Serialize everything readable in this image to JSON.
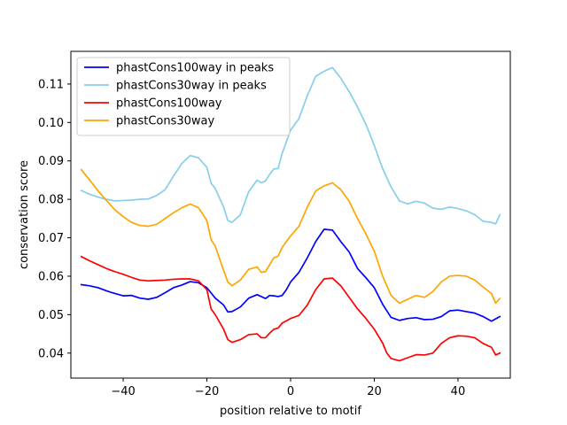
{
  "chart_data": {
    "type": "line",
    "title": "",
    "xlabel": "position relative to motif",
    "ylabel": "conservation score",
    "xlim": [
      -52.5,
      52.5
    ],
    "ylim": [
      0.0335,
      0.1185
    ],
    "xticks": [
      -40,
      -20,
      0,
      20,
      40
    ],
    "yticks": [
      0.04,
      0.05,
      0.06,
      0.07,
      0.08,
      0.09,
      0.1,
      0.11
    ],
    "ytick_labels": [
      "0.04",
      "0.05",
      "0.06",
      "0.07",
      "0.08",
      "0.09",
      "0.10",
      "0.11"
    ],
    "grid": false,
    "legend_position": "top-left",
    "series": [
      {
        "name": "phastCons100way in peaks",
        "color": "#0000ff",
        "points": [
          [
            -50,
            0.0578
          ],
          [
            -48,
            0.0575
          ],
          [
            -46,
            0.057
          ],
          [
            -44,
            0.0562
          ],
          [
            -42,
            0.0555
          ],
          [
            -40,
            0.0549
          ],
          [
            -38,
            0.055
          ],
          [
            -36,
            0.0543
          ],
          [
            -34,
            0.054
          ],
          [
            -32,
            0.0545
          ],
          [
            -30,
            0.0557
          ],
          [
            -28,
            0.057
          ],
          [
            -26,
            0.0577
          ],
          [
            -24,
            0.0586
          ],
          [
            -22,
            0.0583
          ],
          [
            -20,
            0.057
          ],
          [
            -18,
            0.0543
          ],
          [
            -16,
            0.0525
          ],
          [
            -15,
            0.0507
          ],
          [
            -14,
            0.0508
          ],
          [
            -12,
            0.052
          ],
          [
            -10,
            0.0543
          ],
          [
            -8,
            0.0552
          ],
          [
            -6,
            0.0542
          ],
          [
            -5,
            0.055
          ],
          [
            -4,
            0.0549
          ],
          [
            -3,
            0.0547
          ],
          [
            -2,
            0.055
          ],
          [
            -1,
            0.0565
          ],
          [
            0,
            0.0585
          ],
          [
            2,
            0.061
          ],
          [
            4,
            0.0648
          ],
          [
            6,
            0.069
          ],
          [
            8,
            0.0722
          ],
          [
            10,
            0.072
          ],
          [
            12,
            0.069
          ],
          [
            14,
            0.0663
          ],
          [
            16,
            0.062
          ],
          [
            18,
            0.0596
          ],
          [
            20,
            0.057
          ],
          [
            22,
            0.0527
          ],
          [
            24,
            0.0493
          ],
          [
            26,
            0.0485
          ],
          [
            28,
            0.049
          ],
          [
            30,
            0.0492
          ],
          [
            32,
            0.0487
          ],
          [
            34,
            0.0488
          ],
          [
            36,
            0.0495
          ],
          [
            38,
            0.051
          ],
          [
            40,
            0.0512
          ],
          [
            42,
            0.0508
          ],
          [
            44,
            0.0504
          ],
          [
            46,
            0.0495
          ],
          [
            48,
            0.0483
          ],
          [
            50,
            0.0495
          ]
        ]
      },
      {
        "name": "phastCons30way in peaks",
        "color": "#87ceeb",
        "points": [
          [
            -50,
            0.0823
          ],
          [
            -48,
            0.0813
          ],
          [
            -46,
            0.0806
          ],
          [
            -44,
            0.08
          ],
          [
            -42,
            0.0796
          ],
          [
            -40,
            0.0797
          ],
          [
            -38,
            0.0798
          ],
          [
            -36,
            0.08
          ],
          [
            -34,
            0.0801
          ],
          [
            -32,
            0.081
          ],
          [
            -30,
            0.0825
          ],
          [
            -28,
            0.086
          ],
          [
            -26,
            0.0893
          ],
          [
            -24,
            0.0914
          ],
          [
            -22,
            0.0908
          ],
          [
            -20,
            0.0883
          ],
          [
            -19,
            0.0842
          ],
          [
            -18,
            0.0828
          ],
          [
            -16,
            0.078
          ],
          [
            -15,
            0.0745
          ],
          [
            -14,
            0.074
          ],
          [
            -12,
            0.076
          ],
          [
            -10,
            0.082
          ],
          [
            -8,
            0.085
          ],
          [
            -7,
            0.0843
          ],
          [
            -6,
            0.0848
          ],
          [
            -5,
            0.0865
          ],
          [
            -4,
            0.0879
          ],
          [
            -3,
            0.088
          ],
          [
            -2,
            0.092
          ],
          [
            0,
            0.098
          ],
          [
            2,
            0.101
          ],
          [
            4,
            0.107
          ],
          [
            6,
            0.112
          ],
          [
            8,
            0.1133
          ],
          [
            10,
            0.1143
          ],
          [
            12,
            0.1115
          ],
          [
            14,
            0.108
          ],
          [
            16,
            0.104
          ],
          [
            18,
            0.0995
          ],
          [
            20,
            0.094
          ],
          [
            22,
            0.088
          ],
          [
            24,
            0.0832
          ],
          [
            26,
            0.0796
          ],
          [
            28,
            0.0788
          ],
          [
            30,
            0.0795
          ],
          [
            32,
            0.079
          ],
          [
            34,
            0.0777
          ],
          [
            36,
            0.0774
          ],
          [
            38,
            0.078
          ],
          [
            40,
            0.0776
          ],
          [
            42,
            0.077
          ],
          [
            44,
            0.076
          ],
          [
            46,
            0.0743
          ],
          [
            48,
            0.074
          ],
          [
            49,
            0.0736
          ],
          [
            50,
            0.076
          ]
        ]
      },
      {
        "name": "phastCons100way",
        "color": "#ff0000",
        "points": [
          [
            -50,
            0.0651
          ],
          [
            -48,
            0.064
          ],
          [
            -46,
            0.063
          ],
          [
            -44,
            0.062
          ],
          [
            -42,
            0.0612
          ],
          [
            -40,
            0.0605
          ],
          [
            -38,
            0.0597
          ],
          [
            -36,
            0.059
          ],
          [
            -34,
            0.0588
          ],
          [
            -32,
            0.0589
          ],
          [
            -30,
            0.059
          ],
          [
            -28,
            0.0592
          ],
          [
            -26,
            0.0593
          ],
          [
            -24,
            0.0593
          ],
          [
            -22,
            0.0588
          ],
          [
            -20,
            0.0565
          ],
          [
            -19,
            0.0515
          ],
          [
            -18,
            0.05
          ],
          [
            -16,
            0.0462
          ],
          [
            -15,
            0.0435
          ],
          [
            -14,
            0.0428
          ],
          [
            -12,
            0.0435
          ],
          [
            -10,
            0.0448
          ],
          [
            -8,
            0.045
          ],
          [
            -7,
            0.044
          ],
          [
            -6,
            0.044
          ],
          [
            -5,
            0.0452
          ],
          [
            -4,
            0.0462
          ],
          [
            -3,
            0.0465
          ],
          [
            -2,
            0.0478
          ],
          [
            0,
            0.049
          ],
          [
            2,
            0.0498
          ],
          [
            4,
            0.0525
          ],
          [
            6,
            0.0565
          ],
          [
            8,
            0.0593
          ],
          [
            10,
            0.0595
          ],
          [
            12,
            0.0575
          ],
          [
            14,
            0.0545
          ],
          [
            16,
            0.0515
          ],
          [
            18,
            0.049
          ],
          [
            20,
            0.0462
          ],
          [
            22,
            0.0426
          ],
          [
            23,
            0.04
          ],
          [
            24,
            0.0386
          ],
          [
            26,
            0.038
          ],
          [
            28,
            0.0388
          ],
          [
            30,
            0.0396
          ],
          [
            32,
            0.0395
          ],
          [
            34,
            0.04
          ],
          [
            36,
            0.0425
          ],
          [
            38,
            0.044
          ],
          [
            40,
            0.0445
          ],
          [
            42,
            0.0444
          ],
          [
            44,
            0.044
          ],
          [
            46,
            0.0425
          ],
          [
            48,
            0.0415
          ],
          [
            49,
            0.0395
          ],
          [
            50,
            0.04
          ]
        ]
      },
      {
        "name": "phastCons30way",
        "color": "#ffa500",
        "points": [
          [
            -50,
            0.0877
          ],
          [
            -48,
            0.085
          ],
          [
            -46,
            0.0822
          ],
          [
            -44,
            0.0797
          ],
          [
            -42,
            0.0773
          ],
          [
            -40,
            0.0755
          ],
          [
            -38,
            0.074
          ],
          [
            -36,
            0.0732
          ],
          [
            -34,
            0.073
          ],
          [
            -32,
            0.0735
          ],
          [
            -30,
            0.075
          ],
          [
            -28,
            0.0765
          ],
          [
            -26,
            0.0778
          ],
          [
            -24,
            0.0788
          ],
          [
            -22,
            0.0778
          ],
          [
            -20,
            0.0745
          ],
          [
            -19,
            0.0695
          ],
          [
            -18,
            0.0678
          ],
          [
            -16,
            0.0615
          ],
          [
            -15,
            0.0585
          ],
          [
            -14,
            0.0575
          ],
          [
            -12,
            0.059
          ],
          [
            -10,
            0.0618
          ],
          [
            -8,
            0.0624
          ],
          [
            -7,
            0.061
          ],
          [
            -6,
            0.0612
          ],
          [
            -5,
            0.063
          ],
          [
            -4,
            0.0648
          ],
          [
            -3,
            0.0652
          ],
          [
            -2,
            0.0675
          ],
          [
            0,
            0.0705
          ],
          [
            2,
            0.073
          ],
          [
            4,
            0.078
          ],
          [
            6,
            0.0822
          ],
          [
            8,
            0.0835
          ],
          [
            10,
            0.0843
          ],
          [
            12,
            0.0825
          ],
          [
            14,
            0.0795
          ],
          [
            16,
            0.075
          ],
          [
            18,
            0.071
          ],
          [
            20,
            0.0665
          ],
          [
            22,
            0.06
          ],
          [
            24,
            0.055
          ],
          [
            26,
            0.053
          ],
          [
            28,
            0.054
          ],
          [
            30,
            0.055
          ],
          [
            32,
            0.0545
          ],
          [
            34,
            0.056
          ],
          [
            36,
            0.0585
          ],
          [
            38,
            0.06
          ],
          [
            40,
            0.0602
          ],
          [
            42,
            0.06
          ],
          [
            44,
            0.059
          ],
          [
            46,
            0.0572
          ],
          [
            48,
            0.0555
          ],
          [
            49,
            0.053
          ],
          [
            50,
            0.0542
          ]
        ]
      }
    ]
  }
}
